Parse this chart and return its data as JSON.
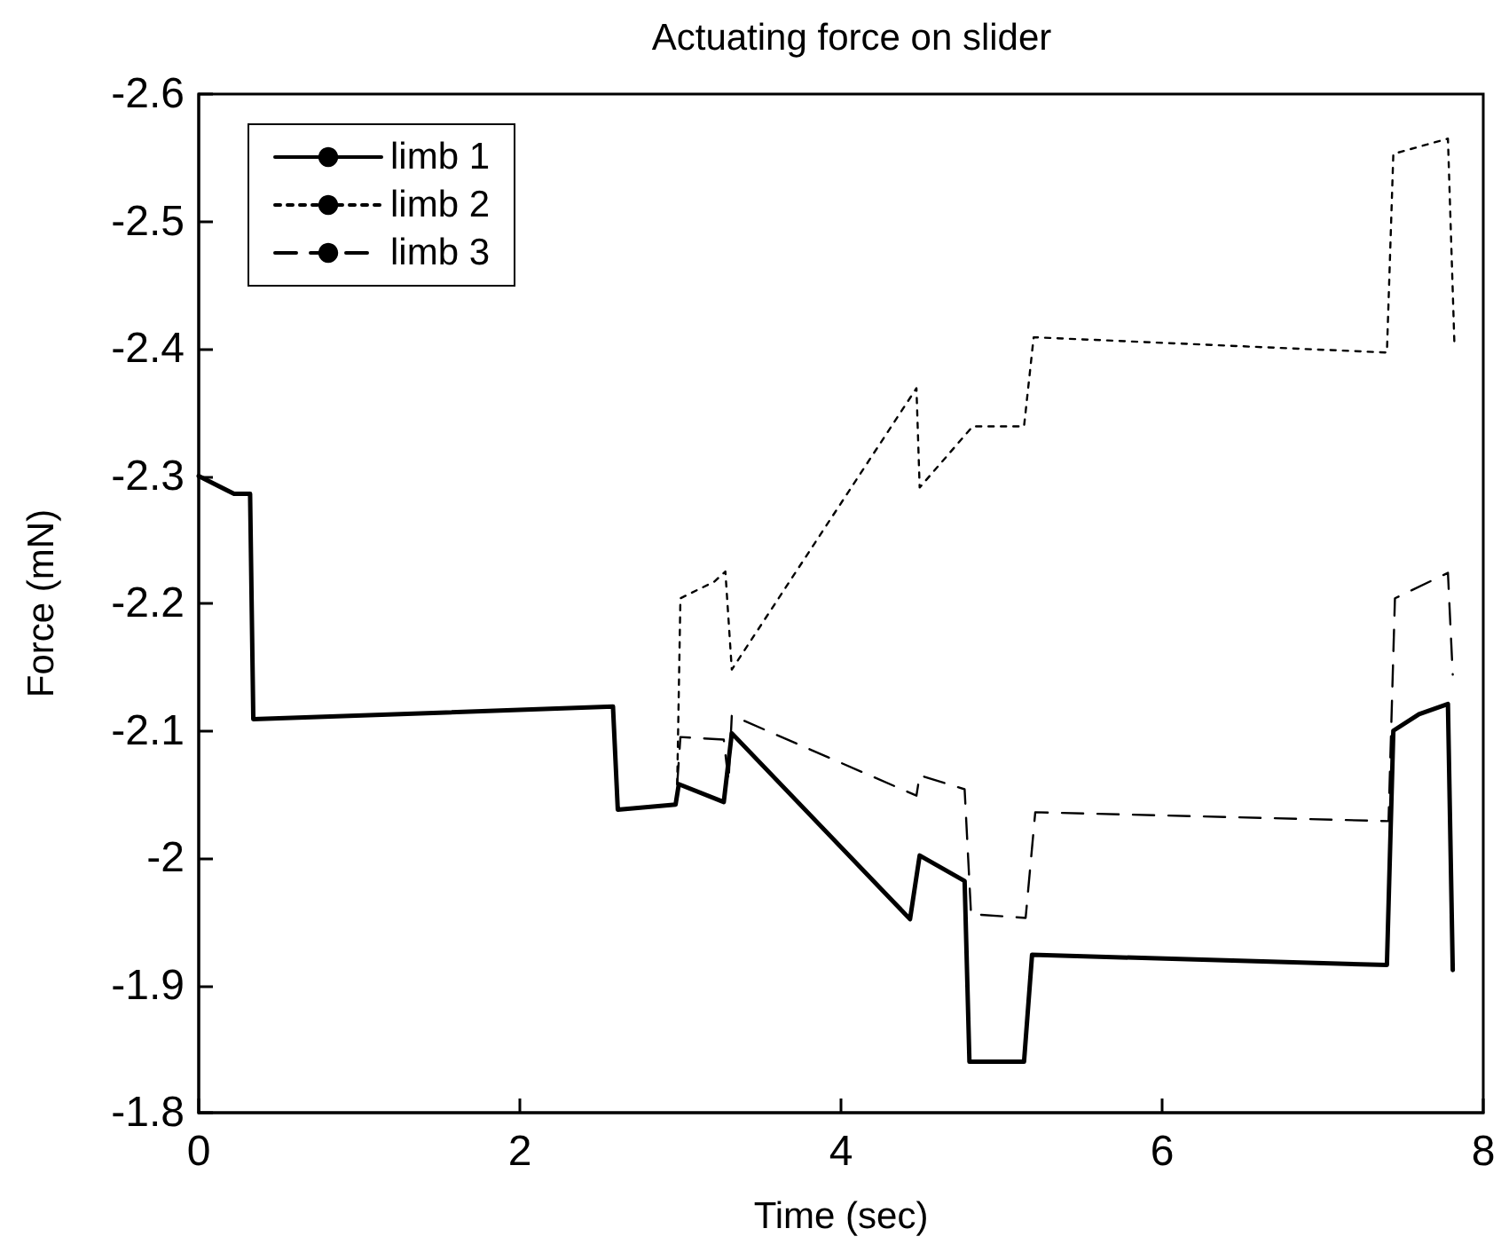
{
  "chart_data": {
    "type": "line",
    "title": "Actuating force on slider",
    "xlabel": "Time (sec)",
    "ylabel": "Force (mN)",
    "xlim": [
      0,
      8
    ],
    "xticks": [
      0,
      2,
      4,
      6,
      8
    ],
    "ylim": [
      -1.8,
      -2.6
    ],
    "yticks": [
      -1.8,
      -1.9,
      -2,
      -2.1,
      -2.2,
      -2.3,
      -2.4,
      -2.5,
      -2.6
    ],
    "grid": false,
    "legend": "top left",
    "marker": "none",
    "series": [
      {
        "name": "limb 1",
        "color": "#000000",
        "line_style": "solid",
        "x": [
          0,
          0.22,
          0.32,
          0.34,
          2.58,
          2.61,
          2.97,
          2.99,
          3.27,
          3.32,
          4.43,
          4.49,
          4.77,
          4.8,
          5.14,
          5.19,
          7.4,
          7.44,
          7.6,
          7.78,
          7.81
        ],
        "values": [
          -2.3,
          -2.286,
          -2.286,
          -2.109,
          -2.119,
          -2.038,
          -2.042,
          -2.058,
          -2.044,
          -2.098,
          -1.952,
          -2.002,
          -1.982,
          -1.84,
          -1.84,
          -1.924,
          -1.916,
          -2.1,
          -2.113,
          -2.121,
          -1.912
        ]
      },
      {
        "name": "limb 2",
        "color": "#000000",
        "line_style": "dotted",
        "x": [
          2.98,
          3.0,
          3.21,
          3.28,
          3.32,
          4.47,
          4.49,
          4.82,
          5.14,
          5.2,
          7.4,
          7.44,
          7.78,
          7.82
        ],
        "values": [
          -2.058,
          -2.204,
          -2.217,
          -2.225,
          -2.148,
          -2.369,
          -2.291,
          -2.339,
          -2.339,
          -2.409,
          -2.397,
          -2.553,
          -2.565,
          -2.405
        ]
      },
      {
        "name": "limb 3",
        "color": "#000000",
        "line_style": "dashed",
        "x": [
          2.98,
          3.0,
          3.27,
          3.3,
          3.32,
          4.47,
          4.49,
          4.77,
          4.81,
          5.15,
          5.21,
          7.41,
          7.45,
          7.78,
          7.81
        ],
        "values": [
          -2.058,
          -2.095,
          -2.093,
          -2.06,
          -2.112,
          -2.049,
          -2.065,
          -2.054,
          -1.956,
          -1.953,
          -2.036,
          -2.029,
          -2.204,
          -2.224,
          -2.144
        ]
      }
    ]
  }
}
